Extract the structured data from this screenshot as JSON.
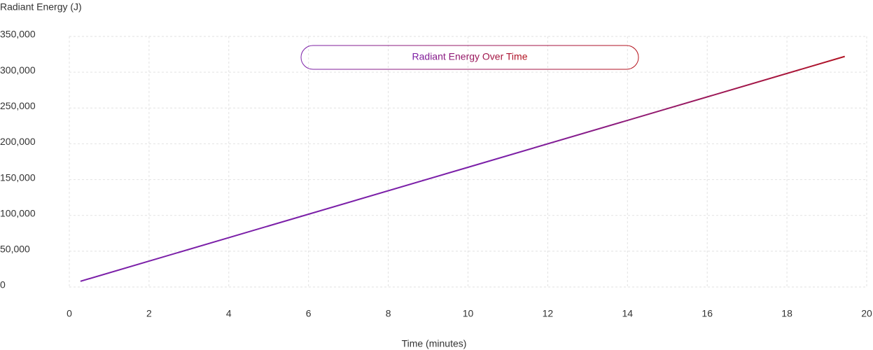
{
  "chart_data": {
    "type": "line",
    "title": "Radiant Energy Over Time",
    "x_label": "Time (minutes)",
    "y_label": "Radiant Energy (J)",
    "x": [
      0.28,
      5,
      10,
      15,
      19.45
    ],
    "series": [
      {
        "name": "Radiant Energy",
        "gradient": [
          "#7b1fa8",
          "#b5121b"
        ],
        "values": [
          8000,
          85300,
          167200,
          249100,
          322000
        ]
      }
    ],
    "xlim": [
      0,
      20
    ],
    "xticks": [
      0,
      2,
      4,
      6,
      8,
      10,
      12,
      14,
      16,
      18,
      20
    ],
    "ylim": [
      0,
      350000
    ],
    "yticks": [
      0,
      {
        "value": 50000,
        "label": "50,000"
      },
      {
        "value": 100000,
        "label": "100,000"
      },
      {
        "value": 150000,
        "label": "150,000"
      },
      {
        "value": 200000,
        "label": "200,000"
      },
      {
        "value": 250000,
        "label": "250,000"
      },
      {
        "value": 300000,
        "label": "300,000"
      },
      {
        "value": 350000,
        "label": "350,000"
      }
    ],
    "grid": true
  }
}
